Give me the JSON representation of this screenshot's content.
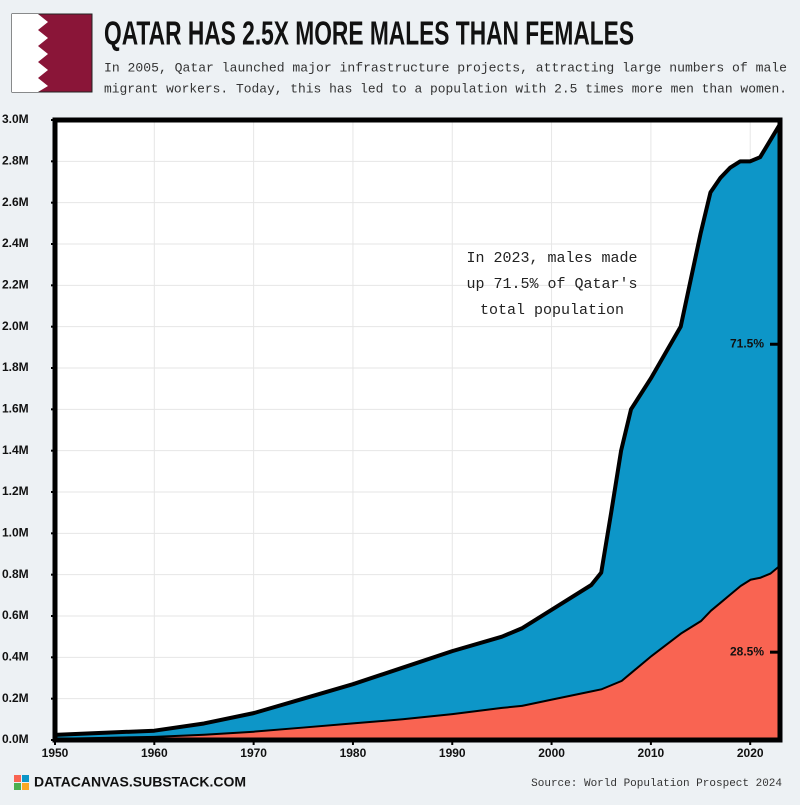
{
  "chart_data": {
    "type": "stacked-area",
    "title": "QATAR HAS 2.5X MORE MALES THAN FEMALES",
    "subtitle": [
      "In 2005, Qatar launched major infrastructure projects, attracting large numbers of male",
      "migrant workers. Today, this has led to a population with 2.5 times more men than women."
    ],
    "annotation": [
      "In 2023, males made",
      "up 71.5% of Qatar's",
      "total population"
    ],
    "footer": "DATACANVAS.SUBSTACK.COM",
    "source": "Source: World Population Prospect 2024",
    "x": [
      1950,
      1955,
      1960,
      1965,
      1970,
      1975,
      1980,
      1985,
      1990,
      1995,
      1997,
      2000,
      2004,
      2005,
      2006,
      2007,
      2008,
      2010,
      2013,
      2015,
      2016,
      2017,
      2018,
      2019,
      2020,
      2021,
      2022,
      2023
    ],
    "series": [
      {
        "color": "#f96452",
        "end_label": "28.5%",
        "values": [
          0.01,
          0.015,
          0.02,
          0.03,
          0.045,
          0.065,
          0.085,
          0.105,
          0.13,
          0.16,
          0.17,
          0.2,
          0.24,
          0.25,
          0.27,
          0.29,
          0.33,
          0.41,
          0.52,
          0.58,
          0.63,
          0.67,
          0.71,
          0.75,
          0.78,
          0.79,
          0.81,
          0.85
        ]
      },
      {
        "color": "#0d96c8",
        "end_label": "71.5%",
        "values": [
          0.015,
          0.02,
          0.025,
          0.05,
          0.085,
          0.135,
          0.185,
          0.245,
          0.3,
          0.34,
          0.37,
          0.43,
          0.51,
          0.56,
          0.83,
          1.11,
          1.27,
          1.34,
          1.48,
          1.87,
          2.02,
          2.05,
          2.06,
          2.05,
          2.02,
          2.03,
          2.09,
          2.13
        ]
      }
    ],
    "xlim": [
      1950,
      2023
    ],
    "xticks": [
      1950,
      1960,
      1970,
      1980,
      1990,
      2000,
      2010,
      2020
    ],
    "ylim": [
      0,
      3
    ],
    "yticks": [
      {
        "value": 0,
        "label": "0.0M"
      },
      {
        "value": 0.2,
        "label": "0.2M"
      },
      {
        "value": 0.4,
        "label": "0.4M"
      },
      {
        "value": 0.6,
        "label": "0.6M"
      },
      {
        "value": 0.8,
        "label": "0.8M"
      },
      {
        "value": 1,
        "label": "1.0M"
      },
      {
        "value": 1.2,
        "label": "1.2M"
      },
      {
        "value": 1.4,
        "label": "1.4M"
      },
      {
        "value": 1.6,
        "label": "1.6M"
      },
      {
        "value": 1.8,
        "label": "1.8M"
      },
      {
        "value": 2,
        "label": "2.0M"
      },
      {
        "value": 2.2,
        "label": "2.2M"
      },
      {
        "value": 2.4,
        "label": "2.4M"
      },
      {
        "value": 2.6,
        "label": "2.6M"
      },
      {
        "value": 2.8,
        "label": "2.8M"
      },
      {
        "value": 3,
        "label": "3.0M"
      }
    ],
    "grid": true
  }
}
